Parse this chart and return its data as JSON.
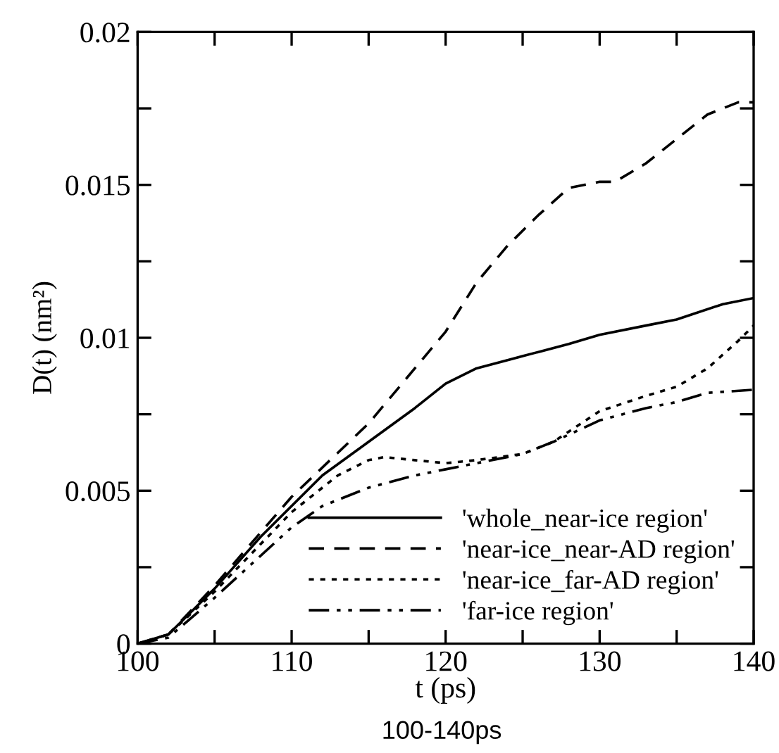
{
  "chart_data": {
    "type": "line",
    "xlabel": "t (ps)",
    "ylabel": "D(t) (nm²)",
    "annotations": [
      "100-140ps"
    ],
    "xlim": [
      100,
      140
    ],
    "ylim": [
      0,
      0.02
    ],
    "xticks": [
      100,
      {
        "value": 105,
        "label": null
      },
      110,
      {
        "value": 115,
        "label": null
      },
      120,
      {
        "value": 125,
        "label": null
      },
      130,
      {
        "value": 135,
        "label": null
      },
      140
    ],
    "yticks": [
      0,
      {
        "value": 0.0025,
        "label": null
      },
      0.005,
      {
        "value": 0.0075,
        "label": null
      },
      0.01,
      {
        "value": 0.0125,
        "label": null
      },
      0.015,
      {
        "value": 0.0175,
        "label": null
      },
      0.02
    ],
    "grid": false,
    "legend": "bottom right",
    "marker": "none",
    "series": [
      {
        "name": "'whole_near-ice region'",
        "color": "#000000",
        "line_style": "solid",
        "x": [
          100,
          102,
          105,
          108,
          110,
          112,
          115,
          118,
          120,
          122,
          125,
          128,
          130,
          133,
          135,
          138,
          140
        ],
        "values": [
          0,
          0.0003,
          0.0018,
          0.0035,
          0.0045,
          0.0055,
          0.0066,
          0.0077,
          0.0085,
          0.009,
          0.0094,
          0.0098,
          0.0101,
          0.0104,
          0.0106,
          0.0111,
          0.0113
        ]
      },
      {
        "name": "'near-ice_near-AD region'",
        "color": "#000000",
        "line_style": "dashed",
        "x": [
          100,
          102,
          105,
          110,
          115,
          118,
          120,
          121,
          122,
          124,
          126,
          128,
          130,
          131,
          133,
          135,
          137,
          139,
          140
        ],
        "values": [
          0,
          0.0003,
          0.0019,
          0.0048,
          0.0072,
          0.009,
          0.0102,
          0.011,
          0.0118,
          0.013,
          0.014,
          0.0149,
          0.0151,
          0.0151,
          0.0157,
          0.0165,
          0.0173,
          0.0177,
          0.0177
        ]
      },
      {
        "name": "'near-ice_far-AD region'",
        "color": "#000000",
        "line_style": "dotted",
        "x": [
          100,
          102,
          105,
          110,
          113,
          115,
          116,
          118,
          120,
          122,
          125,
          127,
          130,
          133,
          135,
          137,
          139,
          140
        ],
        "values": [
          0,
          0.0003,
          0.0017,
          0.0043,
          0.0055,
          0.006,
          0.0061,
          0.006,
          0.0059,
          0.006,
          0.0062,
          0.0066,
          0.0076,
          0.0081,
          0.0084,
          0.009,
          0.0099,
          0.0104
        ]
      },
      {
        "name": "'far-ice region'",
        "color": "#000000",
        "line_style": "dashdotdot",
        "x": [
          100,
          102,
          105,
          110,
          112,
          115,
          118,
          120,
          122,
          125,
          127,
          130,
          133,
          135,
          137,
          140
        ],
        "values": [
          0,
          0.0002,
          0.0015,
          0.0038,
          0.0045,
          0.0051,
          0.0055,
          0.0057,
          0.0059,
          0.0062,
          0.0066,
          0.0073,
          0.0077,
          0.0079,
          0.0082,
          0.0083
        ]
      }
    ]
  }
}
